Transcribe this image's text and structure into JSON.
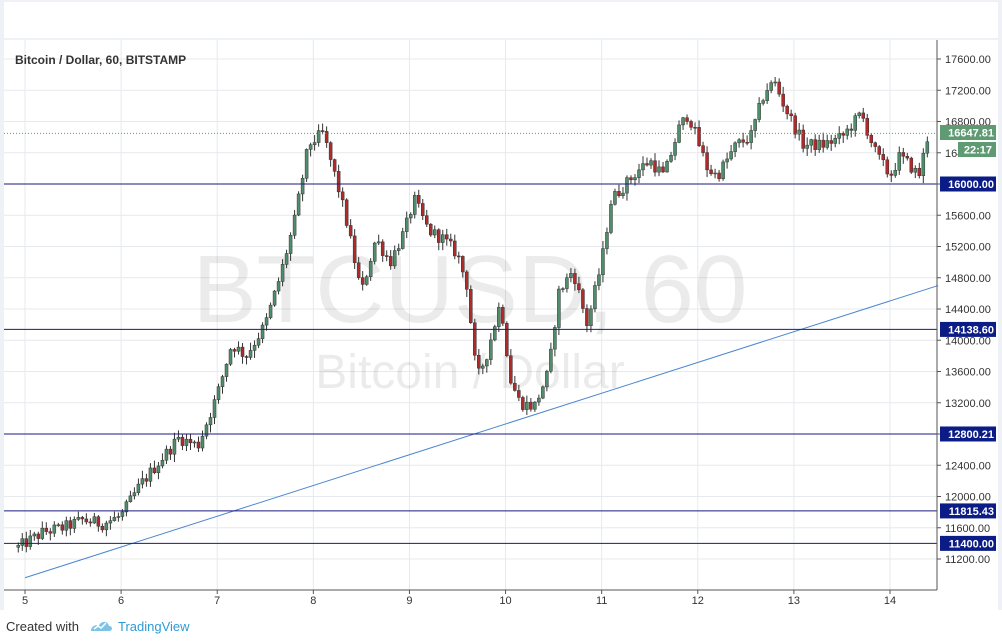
{
  "chart_title": "Bitcoin / Dollar, 60, BITSTAMP",
  "watermark": {
    "symbol": "BTCUSD, 60",
    "name": "Bitcoin / Dollar"
  },
  "footer": {
    "created_with": "Created with",
    "brand": "TradingView"
  },
  "colors": {
    "up": "#4f8e6b",
    "down": "#b02a2a",
    "hline": "#1a1a80",
    "trendline": "#4a86d0",
    "last_price_badge": "#5e9b73",
    "badge_navy": "#0b1c86"
  },
  "price_label": {
    "value": "16647.81",
    "countdown": "22:17"
  },
  "chart_data": {
    "type": "candlestick",
    "title": "Bitcoin / Dollar, 60, BITSTAMP",
    "x_range": [
      4.93,
      14.5
    ],
    "y_range": [
      10860,
      17840
    ],
    "x_ticks": [
      "5",
      "6",
      "7",
      "8",
      "9",
      "10",
      "11",
      "12",
      "13",
      "14"
    ],
    "y_ticks": [
      "11200.00",
      "11600.00",
      "12000.00",
      "12400.00",
      "12800.00",
      "13200.00",
      "13600.00",
      "14000.00",
      "14400.00",
      "14800.00",
      "15200.00",
      "15600.00",
      "16000.00",
      "16400.00",
      "16800.00",
      "17200.00",
      "17600.00"
    ],
    "horizontal_levels": [
      {
        "label": "16000.00",
        "value": 16000.0
      },
      {
        "label": "14138.60",
        "value": 14138.6
      },
      {
        "label": "12800.21",
        "value": 12800.21
      },
      {
        "label": "11815.43",
        "value": 11815.43
      },
      {
        "label": "11400.00",
        "value": 11400.0
      }
    ],
    "last_price": 16647.81,
    "trendline": {
      "x": [
        5.0,
        14.5
      ],
      "y": [
        10960,
        14700
      ]
    },
    "anchors": [
      [
        4.93,
        11350
      ],
      [
        5.2,
        11550
      ],
      [
        5.4,
        11600
      ],
      [
        5.6,
        11700
      ],
      [
        5.8,
        11650
      ],
      [
        6.0,
        11750
      ],
      [
        6.2,
        12150
      ],
      [
        6.4,
        12450
      ],
      [
        6.6,
        12750
      ],
      [
        6.8,
        12650
      ],
      [
        7.0,
        13300
      ],
      [
        7.15,
        13950
      ],
      [
        7.3,
        13800
      ],
      [
        7.5,
        14200
      ],
      [
        7.65,
        14800
      ],
      [
        7.8,
        15500
      ],
      [
        7.95,
        16500
      ],
      [
        8.1,
        16650
      ],
      [
        8.25,
        16000
      ],
      [
        8.35,
        15500
      ],
      [
        8.5,
        14600
      ],
      [
        8.65,
        15300
      ],
      [
        8.8,
        15000
      ],
      [
        8.95,
        15400
      ],
      [
        9.05,
        15800
      ],
      [
        9.2,
        15400
      ],
      [
        9.35,
        15300
      ],
      [
        9.5,
        15100
      ],
      [
        9.6,
        14700
      ],
      [
        9.7,
        13500
      ],
      [
        9.8,
        13800
      ],
      [
        9.95,
        14500
      ],
      [
        10.05,
        13500
      ],
      [
        10.15,
        13200
      ],
      [
        10.3,
        13150
      ],
      [
        10.45,
        13600
      ],
      [
        10.55,
        14600
      ],
      [
        10.7,
        14900
      ],
      [
        10.85,
        14200
      ],
      [
        11.0,
        15000
      ],
      [
        11.1,
        15800
      ],
      [
        11.25,
        16000
      ],
      [
        11.4,
        16200
      ],
      [
        11.5,
        16300
      ],
      [
        11.65,
        16100
      ],
      [
        11.8,
        16700
      ],
      [
        11.9,
        16900
      ],
      [
        12.1,
        16200
      ],
      [
        12.2,
        16100
      ],
      [
        12.4,
        16500
      ],
      [
        12.55,
        16600
      ],
      [
        12.7,
        17200
      ],
      [
        12.8,
        17300
      ],
      [
        12.9,
        17000
      ],
      [
        13.1,
        16500
      ],
      [
        13.3,
        16500
      ],
      [
        13.5,
        16600
      ],
      [
        13.7,
        16900
      ],
      [
        13.85,
        16400
      ],
      [
        14.0,
        16100
      ],
      [
        14.1,
        16350
      ],
      [
        14.2,
        16250
      ],
      [
        14.3,
        16100
      ],
      [
        14.4,
        16650
      ]
    ]
  }
}
